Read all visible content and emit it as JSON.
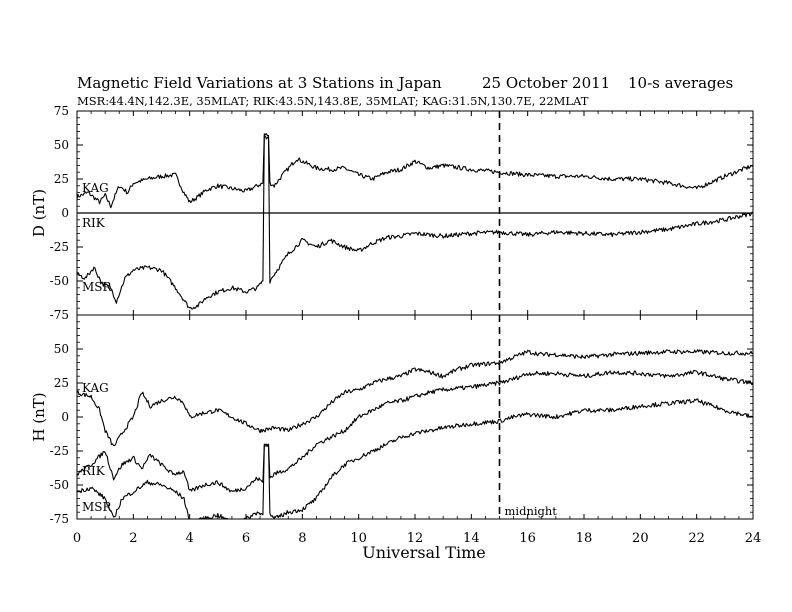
{
  "header": {
    "title": "Magnetic Field Variations at 3 Stations in Japan",
    "date": "25 October 2011",
    "averaging": "10-s averages",
    "stations_line": "MSR:44.4N,142.3E, 35MLAT;  RIK:43.5N,143.8E, 35MLAT;  KAG:31.5N,130.7E, 22MLAT"
  },
  "chart_data": {
    "type": "line",
    "xlabel": "Universal Time",
    "xlim": [
      0,
      24
    ],
    "x_ticks": [
      0,
      2,
      4,
      6,
      8,
      10,
      12,
      14,
      16,
      18,
      20,
      22,
      24
    ],
    "midnight_marker": {
      "x": 15,
      "label": "midnight"
    },
    "panels": [
      {
        "id": "D",
        "ylabel": "D (nT)",
        "ylim": [
          -75,
          75
        ],
        "y_ticks": [
          -75,
          -50,
          -25,
          0,
          25,
          50,
          75
        ],
        "zero_line": true,
        "series": [
          {
            "name": "KAG",
            "x": [
              0,
              0.4,
              0.8,
              1.0,
              1.2,
              1.5,
              1.8,
              2.0,
              2.5,
              3.0,
              3.5,
              3.8,
              4.0,
              4.3,
              4.6,
              5.0,
              5.5,
              6.0,
              6.4,
              6.6,
              6.65,
              6.8,
              6.85,
              7.0,
              7.3,
              7.6,
              7.8,
              8.0,
              8.5,
              9.0,
              9.5,
              10.0,
              10.5,
              11.0,
              11.5,
              12.0,
              12.5,
              13.0,
              14.0,
              15.0,
              16.0,
              17.0,
              18.0,
              19.0,
              20.0,
              21.0,
              21.5,
              22.0,
              23.0,
              24.0
            ],
            "values": [
              12,
              15,
              8,
              13,
              5,
              20,
              15,
              22,
              25,
              27,
              28,
              15,
              8,
              12,
              17,
              20,
              18,
              16,
              20,
              22,
              58,
              57,
              22,
              20,
              28,
              35,
              40,
              38,
              33,
              32,
              33,
              28,
              25,
              30,
              32,
              38,
              33,
              35,
              32,
              30,
              28,
              27,
              27,
              25,
              25,
              22,
              20,
              18,
              27,
              35
            ]
          },
          {
            "name": "RIK",
            "x": [
              0,
              24
            ],
            "values": [
              0,
              0
            ]
          },
          {
            "name": "MSR",
            "x": [
              0,
              0.3,
              0.6,
              0.9,
              1.2,
              1.4,
              1.7,
              2.0,
              2.5,
              3.0,
              3.5,
              4.0,
              4.3,
              4.6,
              5.0,
              5.5,
              6.0,
              6.4,
              6.6,
              6.65,
              6.8,
              6.85,
              7.0,
              7.5,
              8.0,
              8.5,
              9.0,
              9.5,
              10.0,
              10.5,
              11.0,
              11.5,
              12.0,
              13.0,
              14.0,
              15.0,
              16.0,
              17.0,
              18.0,
              19.0,
              20.0,
              21.0,
              22.0,
              23.0,
              24.0
            ],
            "values": [
              -45,
              -48,
              -40,
              -52,
              -55,
              -65,
              -48,
              -42,
              -40,
              -42,
              -55,
              -70,
              -68,
              -62,
              -58,
              -55,
              -58,
              -55,
              -50,
              57,
              55,
              -50,
              -45,
              -30,
              -20,
              -25,
              -20,
              -25,
              -28,
              -22,
              -18,
              -17,
              -15,
              -17,
              -15,
              -14,
              -16,
              -14,
              -15,
              -16,
              -14,
              -12,
              -8,
              -5,
              0
            ]
          }
        ],
        "labels": [
          "KAG",
          "RIK",
          "MSR"
        ]
      },
      {
        "id": "H",
        "ylabel": "H (nT)",
        "ylim": [
          -75,
          75
        ],
        "y_ticks": [
          -75,
          -50,
          -25,
          0,
          25,
          50
        ],
        "zero_line": false,
        "series": [
          {
            "name": "KAG",
            "x": [
              0,
              0.5,
              0.8,
              1.0,
              1.3,
              1.6,
              2.0,
              2.3,
              2.6,
              3.0,
              3.5,
              3.8,
              4.0,
              4.5,
              5.0,
              5.5,
              6.0,
              6.5,
              7.0,
              7.5,
              8.0,
              8.5,
              9.0,
              9.5,
              10.0,
              10.5,
              11.0,
              11.5,
              12.0,
              12.5,
              13.0,
              13.5,
              14.0,
              15.0,
              15.5,
              16.0,
              16.5,
              17.0,
              18.0,
              19.0,
              20.0,
              21.0,
              22.0,
              23.0,
              24.0
            ],
            "values": [
              18,
              15,
              5,
              -10,
              -22,
              -12,
              0,
              18,
              8,
              12,
              15,
              10,
              0,
              3,
              5,
              0,
              -5,
              -10,
              -8,
              -10,
              -5,
              0,
              10,
              18,
              20,
              25,
              28,
              30,
              35,
              33,
              30,
              35,
              38,
              40,
              44,
              48,
              46,
              46,
              44,
              46,
              47,
              48,
              48,
              47,
              47
            ]
          },
          {
            "name": "RIK",
            "x": [
              0,
              0.5,
              1.0,
              1.3,
              1.6,
              2.0,
              2.3,
              2.6,
              3.0,
              3.4,
              3.8,
              4.0,
              4.5,
              5.0,
              5.5,
              6.0,
              6.4,
              6.6,
              6.65,
              6.8,
              6.85,
              7.0,
              7.5,
              8.0,
              8.5,
              9.0,
              9.5,
              10.0,
              10.5,
              11.0,
              11.5,
              12.0,
              12.5,
              13.0,
              14.0,
              15.0,
              15.5,
              16.0,
              17.0,
              18.0,
              19.0,
              20.0,
              21.0,
              22.0,
              23.0,
              24.0
            ],
            "values": [
              -42,
              -35,
              -25,
              -45,
              -35,
              -30,
              -38,
              -28,
              -35,
              -42,
              -40,
              -55,
              -50,
              -48,
              -55,
              -52,
              -45,
              -48,
              -20,
              -20,
              -45,
              -42,
              -38,
              -30,
              -20,
              -15,
              -10,
              0,
              5,
              10,
              12,
              15,
              18,
              20,
              22,
              25,
              28,
              32,
              32,
              30,
              33,
              32,
              30,
              33,
              28,
              25
            ]
          },
          {
            "name": "MSR",
            "x": [
              0,
              0.5,
              1.0,
              1.3,
              1.6,
              2.0,
              2.5,
              3.0,
              3.5,
              3.8,
              4.0,
              4.5,
              5.0,
              5.5,
              6.0,
              6.4,
              6.6,
              6.65,
              6.8,
              6.85,
              7.0,
              7.5,
              8.0,
              8.5,
              9.0,
              9.5,
              10.0,
              10.5,
              11.0,
              11.5,
              12.0,
              12.5,
              13.0,
              14.0,
              15.0,
              15.5,
              16.0,
              17.0,
              18.0,
              19.0,
              20.0,
              21.0,
              22.0,
              23.0,
              24.0
            ],
            "values": [
              -55,
              -52,
              -60,
              -75,
              -60,
              -55,
              -48,
              -50,
              -55,
              -60,
              -78,
              -75,
              -72,
              -78,
              -75,
              -70,
              -72,
              -20,
              -20,
              -72,
              -75,
              -70,
              -68,
              -60,
              -45,
              -35,
              -30,
              -25,
              -20,
              -15,
              -12,
              -10,
              -8,
              -5,
              -3,
              0,
              2,
              0,
              5,
              5,
              8,
              10,
              12,
              5,
              0
            ]
          }
        ],
        "labels": [
          "KAG",
          "RIK",
          "MSR"
        ]
      }
    ]
  }
}
